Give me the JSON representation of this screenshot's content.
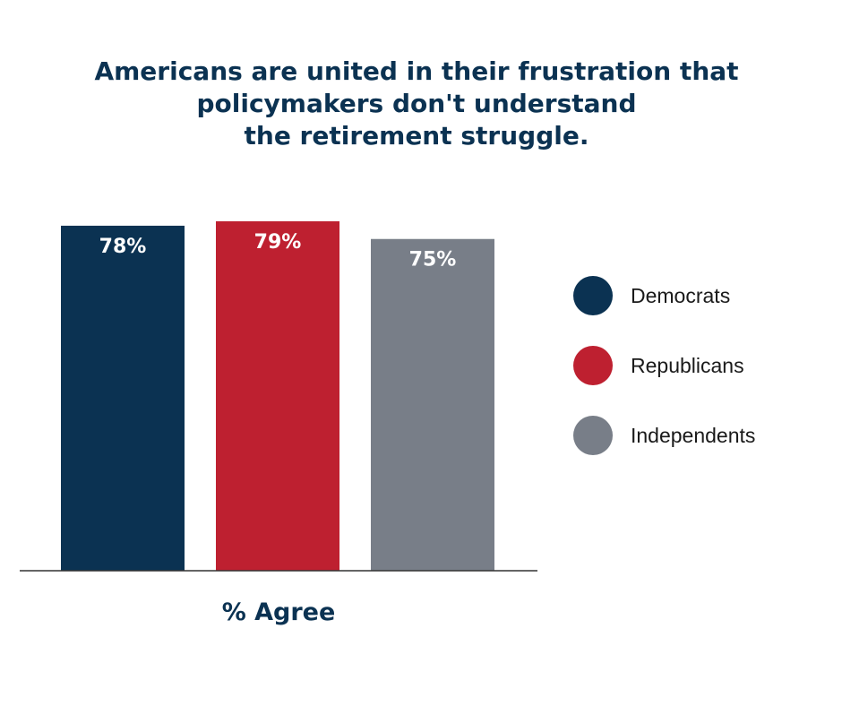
{
  "title_lines": [
    "Americans are united in their frustration that",
    "policymakers don't understand",
    "the retirement struggle."
  ],
  "chart_data": {
    "type": "bar",
    "categories": [
      "Democrats",
      "Republicans",
      "Independents"
    ],
    "values": [
      78,
      79,
      75
    ],
    "value_labels": [
      "78%",
      "79%",
      "75%"
    ],
    "colors": [
      "#0b3252",
      "#be2030",
      "#787e88"
    ],
    "xlabel": "% Agree",
    "ylabel": "",
    "ylim": [
      0,
      79
    ],
    "grid": false,
    "legend_position": "right",
    "legend": [
      "Democrats",
      "Republicans",
      "Independents"
    ]
  }
}
